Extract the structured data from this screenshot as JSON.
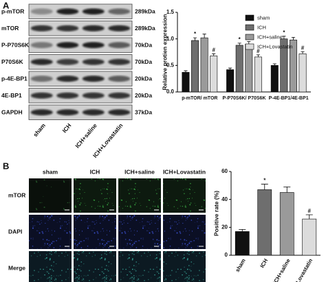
{
  "panel_a": {
    "label": "A",
    "blot": {
      "rows": [
        {
          "name": "p-mTOR",
          "size": "289kDa"
        },
        {
          "name": "mTOR",
          "size": "289kDa"
        },
        {
          "name": "P-P70S6K",
          "size": "70kDa"
        },
        {
          "name": "P70S6K",
          "size": "70kDa"
        },
        {
          "name": "p-4E-BP1",
          "size": "20kDa"
        },
        {
          "name": "4E-BP1",
          "size": "20kDa"
        },
        {
          "name": "GAPDH",
          "size": "37kDa"
        }
      ],
      "lanes": [
        "sham",
        "ICH",
        "ICH+saline",
        "ICH+Lovastatin"
      ]
    }
  },
  "panel_b": {
    "label": "B",
    "columns": [
      "sham",
      "ICH",
      "ICH+saline",
      "ICH+Lovastatin"
    ],
    "rows": [
      "mTOR",
      "DAPI",
      "Merge"
    ]
  },
  "chart_data": [
    {
      "type": "bar",
      "ylabel": "Relative protien expression",
      "categories": [
        "p-mTOR/ mTOR",
        "P-P70S6K/ P70S6K",
        "P-4E-BP1/4E-BP1"
      ],
      "series": [
        {
          "name": "sham",
          "color": "#111111",
          "values": [
            0.37,
            0.42,
            0.5
          ],
          "errors": [
            0.03,
            0.03,
            0.03
          ]
        },
        {
          "name": "ICH",
          "color": "#6e6e6e",
          "values": [
            0.97,
            0.88,
            1.0
          ],
          "errors": [
            0.05,
            0.04,
            0.05
          ],
          "significance": [
            "*",
            "*",
            "*"
          ]
        },
        {
          "name": "ICH+saline",
          "color": "#9a9a9a",
          "values": [
            1.02,
            0.9,
            0.98
          ],
          "errors": [
            0.07,
            0.05,
            0.05
          ]
        },
        {
          "name": "ICH+Lovastatin",
          "color": "#dcdcdc",
          "values": [
            0.68,
            0.66,
            0.72
          ],
          "errors": [
            0.04,
            0.04,
            0.04
          ],
          "significance": [
            "#",
            "#",
            "#"
          ]
        }
      ],
      "ylim": [
        0,
        1.5
      ],
      "yticks": [
        {
          "value": 0,
          "label": "0.0"
        },
        {
          "value": 0.5,
          "label": "0.5"
        },
        {
          "value": 1,
          "label": "1.0"
        },
        {
          "value": 1.5,
          "label": "1.5"
        }
      ],
      "legend": "upper right"
    },
    {
      "type": "bar",
      "ylabel": "Positive rate (%)",
      "categories": [
        "sham",
        "ICH",
        "ICH+saline",
        "ICH+Lovastatin"
      ],
      "values": [
        17,
        47,
        45,
        26
      ],
      "errors": [
        1.5,
        4,
        4,
        3
      ],
      "significance": [
        null,
        "*",
        null,
        "#"
      ],
      "colors": [
        "#111111",
        "#6e6e6e",
        "#9a9a9a",
        "#dcdcdc"
      ],
      "ylim": [
        0,
        60
      ],
      "yticks": [
        0,
        20,
        40,
        60
      ]
    }
  ]
}
